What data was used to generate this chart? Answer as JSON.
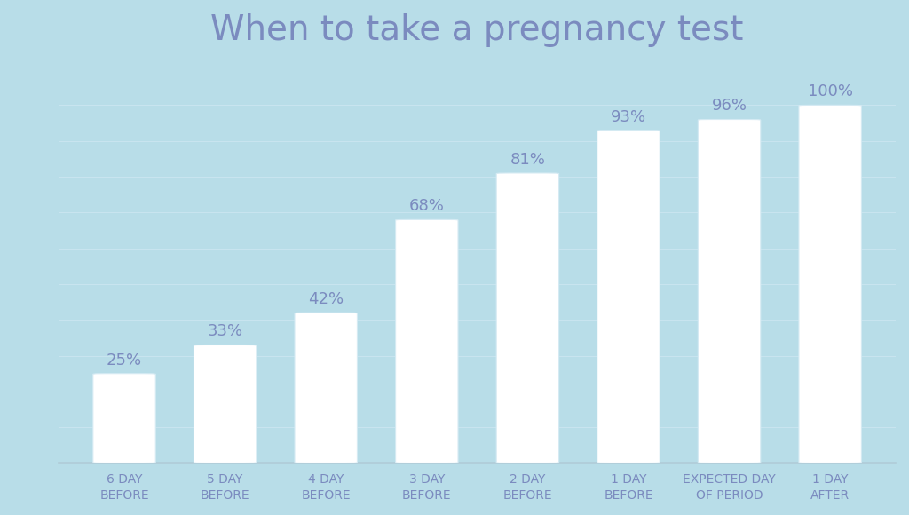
{
  "title": "When to take a pregnancy test",
  "categories": [
    "6 DAY\nBEFORE",
    "5 DAY\nBEFORE",
    "4 DAY\nBEFORE",
    "3 DAY\nBEFORE",
    "2 DAY\nBEFORE",
    "1 DAY\nBEFORE",
    "EXPECTED DAY\nOF PERIOD",
    "1 DAY\nAFTER"
  ],
  "values": [
    25,
    33,
    42,
    68,
    81,
    93,
    96,
    100
  ],
  "labels": [
    "25%",
    "33%",
    "42%",
    "68%",
    "81%",
    "93%",
    "96%",
    "100%"
  ],
  "background_color": "#b8dde8",
  "bar_color": "#ffffff",
  "bar_edge_color": "#d5eaf3",
  "title_color": "#7b8bbf",
  "label_color": "#7b8bbf",
  "tick_color": "#7b8bbf",
  "ylabel_color": "#7b8bbf",
  "grid_color": "#c8e4ef",
  "axis_color": "#b0ccd8",
  "ylim": [
    0,
    112
  ],
  "title_fontsize": 28,
  "label_fontsize": 13,
  "tick_fontsize": 10,
  "ylabel_fontsize": 8.5,
  "bar_width": 0.62
}
